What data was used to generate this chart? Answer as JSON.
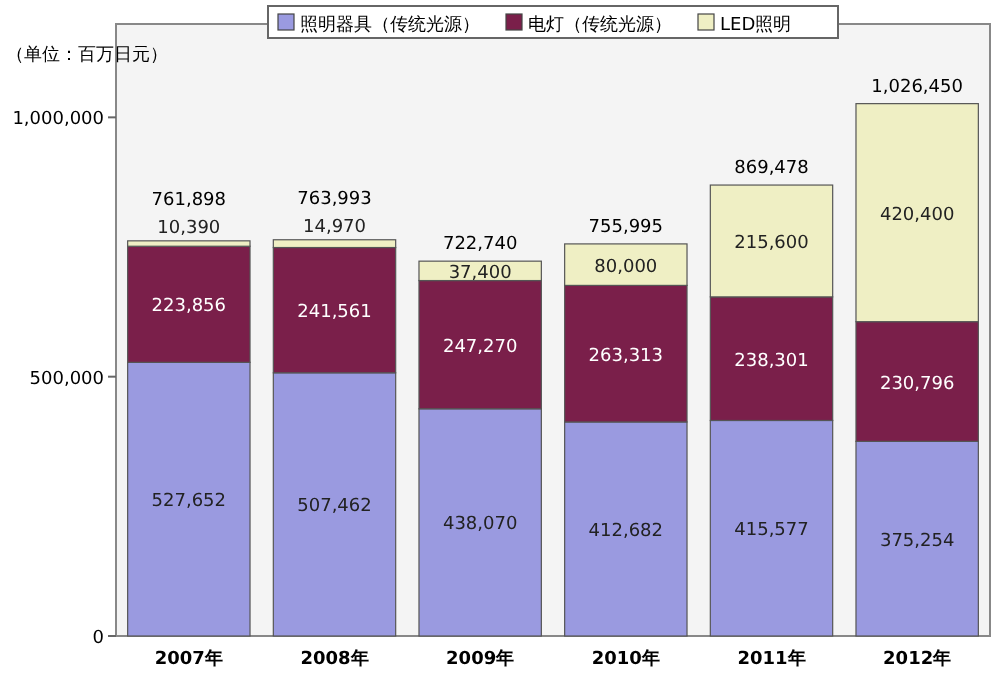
{
  "chart_data": {
    "type": "bar",
    "stacked": true,
    "ylabel": "（单位：百万日元）",
    "categories": [
      "2007年",
      "2008年",
      "2009年",
      "2010年",
      "2011年",
      "2012年"
    ],
    "series": [
      {
        "name": "照明器具（传统光源）",
        "color": "#9a9ae0",
        "values": [
          527652,
          507462,
          438070,
          412682,
          415577,
          375254
        ],
        "value_labels": [
          "527,652",
          "507,462",
          "438,070",
          "412,682",
          "415,577",
          "375,254"
        ]
      },
      {
        "name": "电灯（传统光源）",
        "color": "#7a1f4a",
        "values": [
          223856,
          241561,
          247270,
          263313,
          238301,
          230796
        ],
        "value_labels": [
          "223,856",
          "241,561",
          "247,270",
          "263,313",
          "238,301",
          "230,796"
        ]
      },
      {
        "name": "LED照明",
        "color": "#efefc4",
        "values": [
          10390,
          14970,
          37400,
          80000,
          215600,
          420400
        ],
        "value_labels": [
          "10,390",
          "14,970",
          "37,400",
          "80,000",
          "215,600",
          "420,400"
        ]
      }
    ],
    "totals": [
      "761,898",
      "763,993",
      "722,740",
      "755,995",
      "869,478",
      "1,026,450"
    ],
    "legend": "top",
    "ylim": [
      0,
      1180000
    ],
    "yticks": [
      {
        "value": 0,
        "label": "0"
      },
      {
        "value": 500000,
        "label": "500,000"
      },
      {
        "value": 1000000,
        "label": "1,000,000"
      }
    ]
  }
}
